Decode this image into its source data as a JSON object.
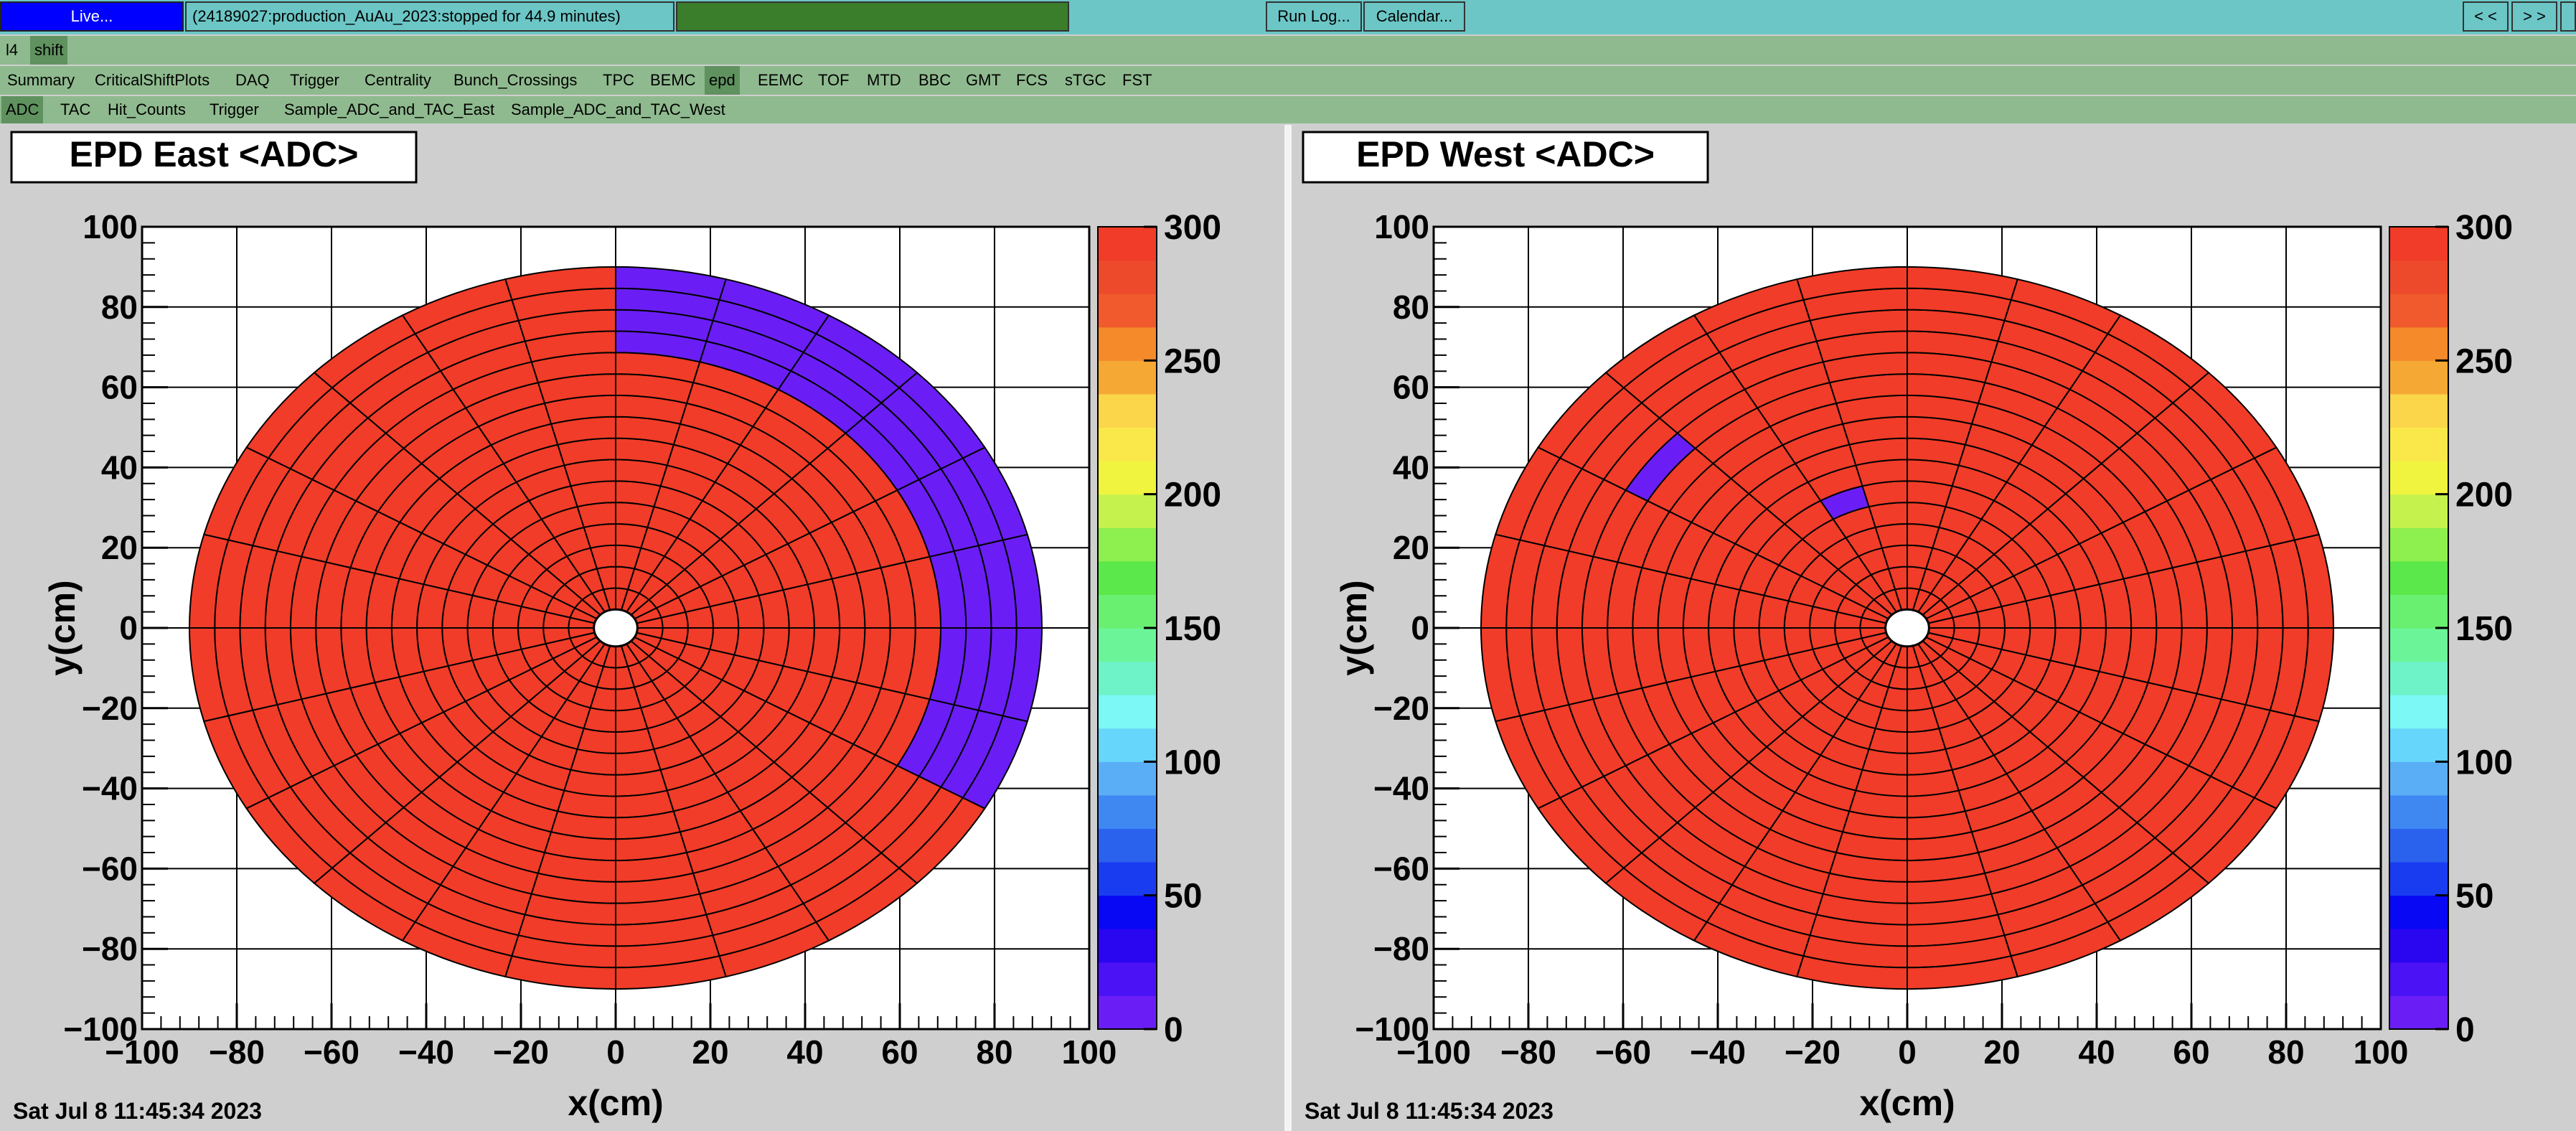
{
  "toolbar": {
    "live_label": "Live...",
    "run_status": "(24189027:production_AuAu_2023:stopped for 44.9 minutes)",
    "run_log_label": "Run Log...",
    "calendar_label": "Calendar...",
    "prev_label": "< <",
    "next_label": "> >"
  },
  "level1_tabs": [
    "l4",
    "shift"
  ],
  "level2_tabs": [
    "Summary",
    "CriticalShiftPlots",
    "DAQ",
    "Trigger",
    "Centrality",
    "Bunch_Crossings",
    "TPC",
    "BEMC",
    "epd",
    "EEMC",
    "TOF",
    "MTD",
    "BBC",
    "GMT",
    "FCS",
    "sTGC",
    "FST"
  ],
  "level3_tabs": [
    "ADC",
    "TAC",
    "Hit_Counts",
    "Trigger",
    "Sample_ADC_and_TAC_East",
    "Sample_ADC_and_TAC_West"
  ],
  "colors": {
    "topbar": "#6cc6c6",
    "live": "#0000ff",
    "progress": "#3a7d2a",
    "tab_bg": "#8fba8f",
    "tab_active": "#5f925f",
    "high_adc": "#f03c28",
    "low_adc": "#5a14f5"
  },
  "palette": [
    "#6a1ef5",
    "#4b12f5",
    "#2a05f0",
    "#0808f5",
    "#1a3cf0",
    "#2a62ee",
    "#3f88f2",
    "#5aaef6",
    "#66d6fa",
    "#7cf8f6",
    "#6ef2c8",
    "#6cf598",
    "#6af070",
    "#5ae84a",
    "#8ef04e",
    "#c6f24e",
    "#f0f43e",
    "#fae84a",
    "#fbd54a",
    "#f6a834",
    "#f48a2a",
    "#f05a2c",
    "#ec4a2a",
    "#f03c28"
  ],
  "plots": [
    {
      "title": "EPD East <ADC>",
      "timestamp": "Sat Jul 8 11:45:34 2023",
      "chart_data": {
        "type": "heatmap",
        "title": "EPD East <ADC>",
        "xlabel": "x(cm)",
        "ylabel": "y(cm)",
        "xlim": [
          -100,
          100
        ],
        "ylim": [
          -100,
          100
        ],
        "x_ticks": [
          -100,
          -80,
          -60,
          -40,
          -20,
          0,
          20,
          40,
          60,
          80,
          100
        ],
        "y_ticks": [
          -100,
          -80,
          -60,
          -40,
          -20,
          0,
          20,
          40,
          60,
          80,
          100
        ],
        "z_range": [
          0,
          300
        ],
        "z_ticks": [
          0,
          50,
          100,
          150,
          200,
          250,
          300
        ],
        "detector": {
          "rings": 16,
          "sectors": 24,
          "inner_radius_cm": 4.6,
          "outer_radius_cm": 90
        },
        "default_value": 300,
        "low_regions": [
          {
            "ring_from": 13,
            "ring_to": 16,
            "phi_from_deg": -30,
            "phi_to_deg": 90,
            "value": 0
          },
          {
            "ring_from": 14,
            "ring_to": 15,
            "phi_from_deg": 75,
            "phi_to_deg": 90,
            "value": 0
          }
        ]
      }
    },
    {
      "title": "EPD West <ADC>",
      "timestamp": "Sat Jul 8 11:45:34 2023",
      "chart_data": {
        "type": "heatmap",
        "title": "EPD West <ADC>",
        "xlabel": "x(cm)",
        "ylabel": "y(cm)",
        "xlim": [
          -100,
          100
        ],
        "ylim": [
          -100,
          100
        ],
        "x_ticks": [
          -100,
          -80,
          -60,
          -40,
          -20,
          0,
          20,
          40,
          60,
          80,
          100
        ],
        "y_ticks": [
          -100,
          -80,
          -60,
          -40,
          -20,
          0,
          20,
          40,
          60,
          80,
          100
        ],
        "z_range": [
          0,
          300
        ],
        "z_ticks": [
          0,
          50,
          100,
          150,
          200,
          250,
          300
        ],
        "detector": {
          "rings": 16,
          "sectors": 24,
          "inner_radius_cm": 4.6,
          "outer_radius_cm": 90
        },
        "default_value": 300,
        "low_regions": [
          {
            "ring_from": 12,
            "ring_to": 12,
            "phi_from_deg": 135,
            "phi_to_deg": 150,
            "value": 0
          },
          {
            "ring_from": 6,
            "ring_to": 6,
            "phi_from_deg": 105,
            "phi_to_deg": 120,
            "value": 0
          }
        ]
      }
    }
  ]
}
